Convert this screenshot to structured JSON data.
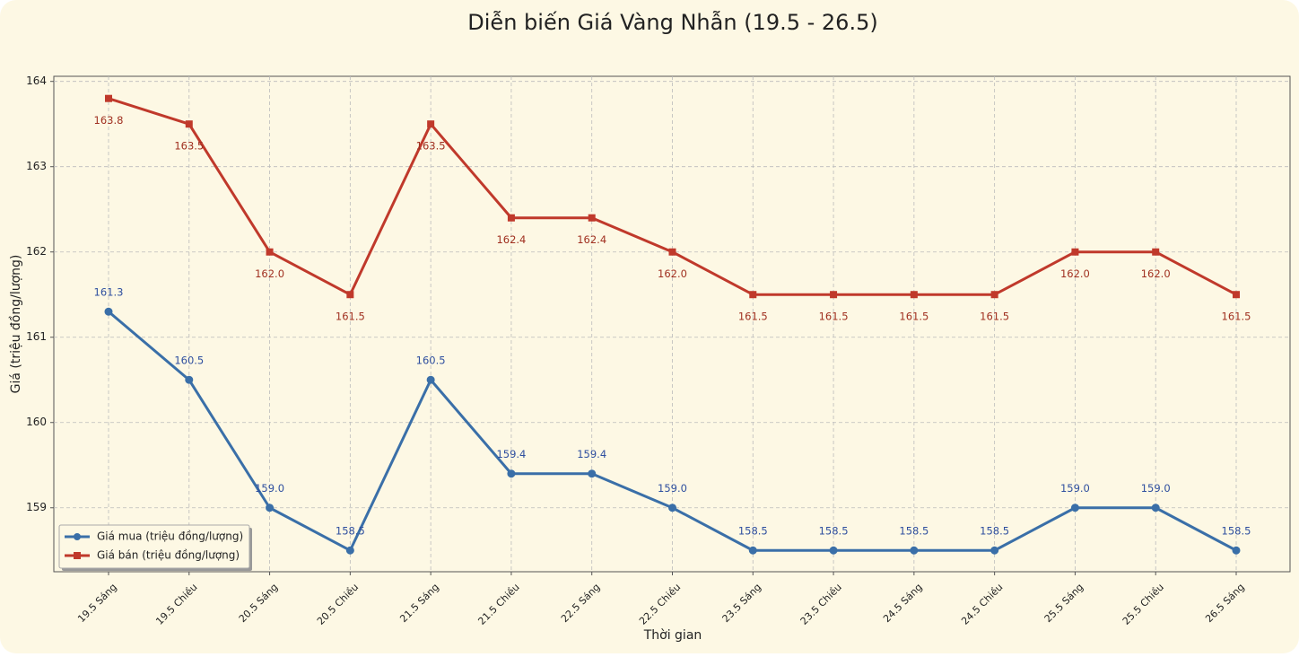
{
  "chart_data": {
    "type": "line",
    "title": "Diễn biến Giá Vàng Nhẫn (19.5 - 26.5)",
    "x_label": "Thời gian",
    "y_label": "Giá (triệu đồng/lượng)",
    "categories": [
      "19.5 Sáng",
      "19.5 Chiều",
      "20.5 Sáng",
      "20.5 Chiều",
      "21.5 Sáng",
      "21.5 Chiều",
      "22.5 Sáng",
      "22.5 Chiều",
      "23.5 Sáng",
      "23.5 Chiều",
      "24.5 Sáng",
      "24.5 Chiều",
      "25.5 Sáng",
      "25.5 Chiều",
      "26.5 Sáng"
    ],
    "series": [
      {
        "name": "Giá mua (triệu đồng/lượng)",
        "color": "#3a6fa8",
        "label_color": "#2f4f9f",
        "marker": "circle",
        "values": [
          161.3,
          160.5,
          159.0,
          158.5,
          160.5,
          159.4,
          159.4,
          159.0,
          158.5,
          158.5,
          158.5,
          158.5,
          159.0,
          159.0,
          158.5
        ],
        "value_labels": [
          "161.3",
          "160.5",
          "159.0",
          "158.5",
          "160.5",
          "159.4",
          "159.4",
          "159.0",
          "158.5",
          "158.5",
          "158.5",
          "158.5",
          "159.0",
          "159.0",
          "158.5"
        ]
      },
      {
        "name": "Giá bán (triệu đồng/lượng)",
        "color": "#c0392b",
        "label_color": "#a03020",
        "marker": "square",
        "values": [
          163.8,
          163.5,
          162.0,
          161.5,
          163.5,
          162.4,
          162.4,
          162.0,
          161.5,
          161.5,
          161.5,
          161.5,
          162.0,
          162.0,
          161.5
        ],
        "value_labels": [
          "163.8",
          "163.5",
          "162.0",
          "161.5",
          "163.5",
          "162.4",
          "162.4",
          "162.0",
          "161.5",
          "161.5",
          "161.5",
          "161.5",
          "162.0",
          "162.0",
          "161.5"
        ]
      }
    ],
    "ylim": [
      158.25,
      164.06
    ],
    "yticks": [
      159,
      160,
      161,
      162,
      163,
      164
    ],
    "grid": true,
    "legend": "lower left"
  }
}
